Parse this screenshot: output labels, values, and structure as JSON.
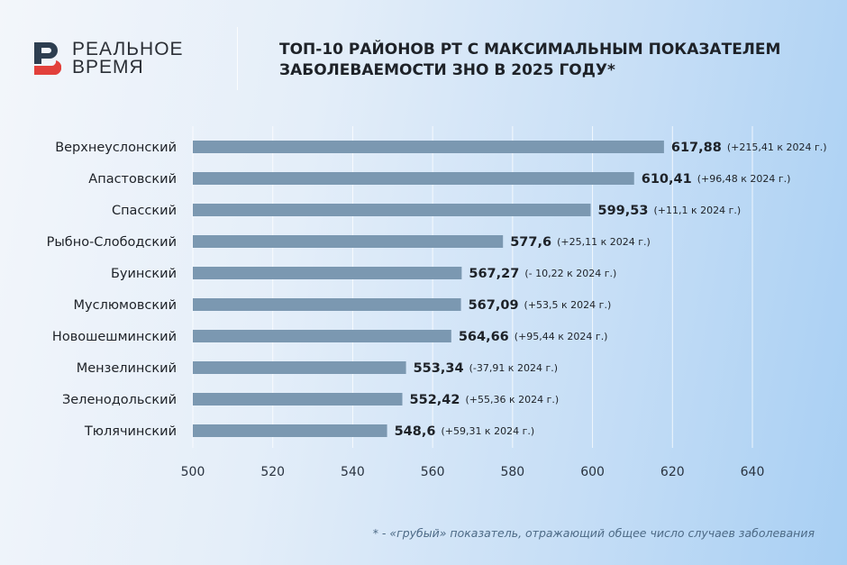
{
  "brand": {
    "name_line1": "РЕАЛЬНОЕ",
    "name_line2": "ВРЕМЯ",
    "colors": {
      "dark": "#2d3e50",
      "red": "#e2403b"
    }
  },
  "header": {
    "title_line1": "ТОП-10 РАЙОНОВ РТ С МАКСИМАЛЬНЫМ ПОКАЗАТЕЛЕМ",
    "title_line2": "ЗАБОЛЕВАЕМОСТИ ЗНО В 2025 ГОДУ*"
  },
  "footnote": "* - «грубый» показатель, отражающий общее число случаев заболевания",
  "chart_data": {
    "type": "bar",
    "orientation": "horizontal",
    "bar_color": "#7b98b1",
    "categories": [
      "Верхнеуслонский",
      "Апастовский",
      "Спасский",
      "Рыбно-Слободский",
      "Буинский",
      "Муслюмовский",
      "Новошешминский",
      "Мензелинский",
      "Зеленодольский",
      "Тюлячинский"
    ],
    "values": [
      617.88,
      610.41,
      599.53,
      577.6,
      567.27,
      567.09,
      564.66,
      553.34,
      552.42,
      548.6
    ],
    "value_labels": [
      "617,88",
      "610,41",
      "599,53",
      "577,6",
      "567,27",
      "567,09",
      "564,66",
      "553,34",
      "552,42",
      "548,6"
    ],
    "change_labels": [
      "(+215,41 к 2024 г.)",
      "(+96,48 к 2024 г.)",
      "(+11,1 к 2024 г.)",
      "(+25,11 к 2024 г.)",
      "(- 10,22 к 2024 г.)",
      "(+53,5 к 2024 г.)",
      "(+95,44 к 2024 г.)",
      "(-37,91 к 2024 г.)",
      "(+55,36 к 2024 г.)",
      "(+59,31 к 2024 г.)"
    ],
    "xlim": [
      500,
      640
    ],
    "xticks": [
      500,
      520,
      540,
      560,
      580,
      600,
      620,
      640
    ],
    "grid": true
  }
}
